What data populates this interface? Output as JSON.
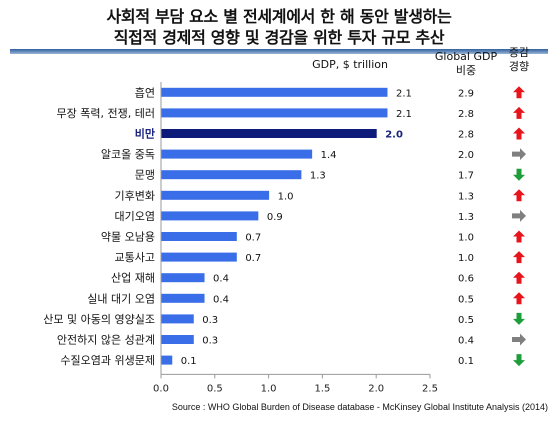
{
  "title": {
    "line1": "사회적 부담 요소 별 전세계에서 한 해 동안 발생하는",
    "line2": "직접적 경제적 영향 및 경감을 위한 투자 규모 추산"
  },
  "headers": {
    "value_axis": "GDP, $ trillion",
    "gdp_share": [
      "Global GDP",
      "비중"
    ],
    "trend": [
      "증감",
      "경향"
    ]
  },
  "source": "Source : WHO Global Burden of Disease database - McKinsey Global Institute Analysis (2014)",
  "colors": {
    "bar": "#3a6ee8",
    "bar_highlight": "#0d1b7a",
    "arrow_up": "#e8141c",
    "arrow_flat": "#808080",
    "arrow_down": "#1e9e3a"
  },
  "chart_data": {
    "type": "bar",
    "orientation": "horizontal",
    "categories": [
      "흡연",
      "무장 폭력, 전쟁, 테러",
      "비만",
      "알코올 중독",
      "문맹",
      "기후변화",
      "대기오염",
      "약물 오남용",
      "교통사고",
      "산업 재해",
      "실내 대기 오염",
      "산모 및 아동의 영양실조",
      "안전하지 않은 성관계",
      "수질오염과 위생문제"
    ],
    "values": [
      2.1,
      2.1,
      2.0,
      1.4,
      1.3,
      1.0,
      0.9,
      0.7,
      0.7,
      0.4,
      0.4,
      0.3,
      0.3,
      0.1
    ],
    "value_labels": [
      "2.1",
      "2.1",
      "2.0",
      "1.4",
      "1.3",
      "1.0",
      "0.9",
      "0.7",
      "0.7",
      "0.4",
      "0.4",
      "0.3",
      "0.3",
      "0.1"
    ],
    "highlight": "비만",
    "xlim": [
      0,
      2.5
    ],
    "xticks": [
      "0.0",
      "0.5",
      "1.0",
      "1.5",
      "2.0",
      "2.5"
    ],
    "gdp_share_pct": [
      "2.9",
      "2.8",
      "2.8",
      "2.0",
      "1.7",
      "1.3",
      "1.3",
      "1.0",
      "1.0",
      "0.6",
      "0.5",
      "0.5",
      "0.4",
      "0.1"
    ],
    "trend": [
      "up",
      "up",
      "up",
      "flat",
      "down",
      "up",
      "flat",
      "up",
      "up",
      "up",
      "up",
      "down",
      "flat",
      "down"
    ]
  }
}
